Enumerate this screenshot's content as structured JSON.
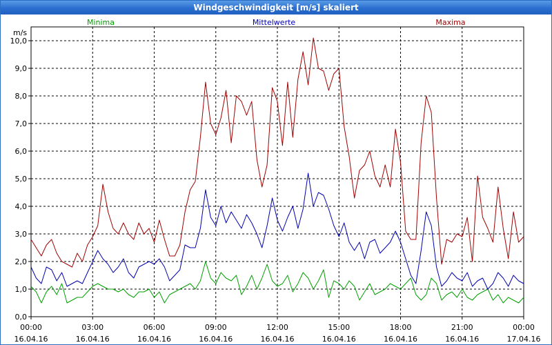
{
  "window": {
    "title": "Windgeschwindigkeit [m/s] skaliert"
  },
  "chart_data": {
    "type": "line",
    "title": "Windgeschwindigkeit [m/s] skaliert",
    "ylabel": "m/s",
    "ylim": [
      0,
      10.5
    ],
    "xlim": [
      0,
      24
    ],
    "y_ticks": [
      "0,0",
      "1,0",
      "2,0",
      "3,0",
      "4,0",
      "5,0",
      "6,0",
      "7,0",
      "8,0",
      "9,0",
      "10,0"
    ],
    "x_ticks": [
      {
        "time": "00:00",
        "date": "16.04.16"
      },
      {
        "time": "03:00",
        "date": "16.04.16"
      },
      {
        "time": "06:00",
        "date": "16.04.16"
      },
      {
        "time": "09:00",
        "date": "16.04.16"
      },
      {
        "time": "12:00",
        "date": "16.04.16"
      },
      {
        "time": "15:00",
        "date": "16.04.16"
      },
      {
        "time": "18:00",
        "date": "16.04.16"
      },
      {
        "time": "21:00",
        "date": "16.04.16"
      },
      {
        "time": "00:00",
        "date": "17.04.16"
      }
    ],
    "grid": true,
    "legend_position": "top",
    "series": [
      {
        "name": "Minima",
        "color": "#00a000",
        "x": [
          0.0,
          0.25,
          0.5,
          0.75,
          1.0,
          1.25,
          1.5,
          1.75,
          2.0,
          2.25,
          2.5,
          2.75,
          3.0,
          3.25,
          3.5,
          3.75,
          4.0,
          4.25,
          4.5,
          4.75,
          5.0,
          5.25,
          5.5,
          5.75,
          6.0,
          6.25,
          6.5,
          6.75,
          7.0,
          7.25,
          7.5,
          7.75,
          8.0,
          8.25,
          8.5,
          8.75,
          9.0,
          9.25,
          9.5,
          9.75,
          10.0,
          10.25,
          10.5,
          10.75,
          11.0,
          11.25,
          11.5,
          11.75,
          12.0,
          12.25,
          12.5,
          12.75,
          13.0,
          13.25,
          13.5,
          13.75,
          14.0,
          14.25,
          14.5,
          14.75,
          15.0,
          15.25,
          15.5,
          15.75,
          16.0,
          16.25,
          16.5,
          16.75,
          17.0,
          17.25,
          17.5,
          17.75,
          18.0,
          18.25,
          18.5,
          18.75,
          19.0,
          19.25,
          19.5,
          19.75,
          20.0,
          20.25,
          20.5,
          20.75,
          21.0,
          21.25,
          21.5,
          21.75,
          22.0,
          22.25,
          22.5,
          22.75,
          23.0,
          23.25,
          23.5,
          23.75,
          24.0
        ],
        "values": [
          1.1,
          0.9,
          0.5,
          0.9,
          1.1,
          0.8,
          1.2,
          0.5,
          0.6,
          0.7,
          0.7,
          0.9,
          1.1,
          1.2,
          1.1,
          1.0,
          1.0,
          0.9,
          1.0,
          0.8,
          0.7,
          0.9,
          0.9,
          1.0,
          0.7,
          0.9,
          0.5,
          0.8,
          0.9,
          1.0,
          1.1,
          1.2,
          1.0,
          1.3,
          2.0,
          1.4,
          1.2,
          1.6,
          1.4,
          1.3,
          1.5,
          0.8,
          1.1,
          1.5,
          1.0,
          1.4,
          1.9,
          1.3,
          1.1,
          1.2,
          1.5,
          0.9,
          1.2,
          1.6,
          1.4,
          1.0,
          1.3,
          1.7,
          0.7,
          1.3,
          1.2,
          1.0,
          1.3,
          1.1,
          0.6,
          0.9,
          1.2,
          0.8,
          0.9,
          1.0,
          1.2,
          1.1,
          1.0,
          1.2,
          1.4,
          0.8,
          0.6,
          0.8,
          1.4,
          1.2,
          0.6,
          0.8,
          0.9,
          0.7,
          1.0,
          0.7,
          0.6,
          0.8,
          0.9,
          1.0,
          0.6,
          0.8,
          0.5,
          0.7,
          0.6,
          0.5,
          0.7
        ]
      },
      {
        "name": "Mittelwerte",
        "color": "#0000b0",
        "x": [
          0.0,
          0.25,
          0.5,
          0.75,
          1.0,
          1.25,
          1.5,
          1.75,
          2.0,
          2.25,
          2.5,
          2.75,
          3.0,
          3.25,
          3.5,
          3.75,
          4.0,
          4.25,
          4.5,
          4.75,
          5.0,
          5.25,
          5.5,
          5.75,
          6.0,
          6.25,
          6.5,
          6.75,
          7.0,
          7.25,
          7.5,
          7.75,
          8.0,
          8.25,
          8.5,
          8.75,
          9.0,
          9.25,
          9.5,
          9.75,
          10.0,
          10.25,
          10.5,
          10.75,
          11.0,
          11.25,
          11.5,
          11.75,
          12.0,
          12.25,
          12.5,
          12.75,
          13.0,
          13.25,
          13.5,
          13.75,
          14.0,
          14.25,
          14.5,
          14.75,
          15.0,
          15.25,
          15.5,
          15.75,
          16.0,
          16.25,
          16.5,
          16.75,
          17.0,
          17.25,
          17.5,
          17.75,
          18.0,
          18.25,
          18.5,
          18.75,
          19.0,
          19.25,
          19.5,
          19.75,
          20.0,
          20.25,
          20.5,
          20.75,
          21.0,
          21.25,
          21.5,
          21.75,
          22.0,
          22.25,
          22.5,
          22.75,
          23.0,
          23.25,
          23.5,
          23.75,
          24.0
        ],
        "values": [
          1.8,
          1.4,
          1.2,
          1.8,
          1.7,
          1.3,
          1.6,
          1.1,
          1.2,
          1.3,
          1.2,
          1.6,
          2.0,
          2.4,
          2.1,
          1.9,
          1.6,
          1.8,
          2.1,
          1.6,
          1.4,
          1.8,
          1.9,
          2.0,
          1.9,
          2.1,
          1.8,
          1.3,
          1.5,
          1.7,
          2.6,
          2.5,
          2.5,
          3.2,
          4.6,
          3.6,
          3.3,
          4.0,
          3.4,
          3.8,
          3.5,
          3.2,
          3.7,
          3.4,
          3.0,
          2.5,
          3.3,
          4.3,
          3.5,
          3.1,
          3.6,
          4.0,
          3.2,
          3.9,
          5.2,
          4.0,
          4.5,
          4.4,
          3.9,
          3.3,
          2.9,
          3.4,
          2.7,
          2.4,
          2.7,
          2.1,
          2.7,
          2.8,
          2.3,
          2.5,
          2.7,
          3.1,
          2.7,
          2.1,
          1.5,
          1.2,
          2.4,
          3.8,
          3.3,
          1.8,
          1.1,
          1.3,
          1.6,
          1.4,
          1.3,
          1.6,
          1.1,
          1.3,
          1.4,
          1.0,
          1.2,
          1.6,
          1.4,
          1.1,
          1.5,
          1.3,
          1.2
        ]
      },
      {
        "name": "Maxima",
        "color": "#a00000",
        "x": [
          0.0,
          0.25,
          0.5,
          0.75,
          1.0,
          1.25,
          1.5,
          1.75,
          2.0,
          2.25,
          2.5,
          2.75,
          3.0,
          3.25,
          3.5,
          3.75,
          4.0,
          4.25,
          4.5,
          4.75,
          5.0,
          5.25,
          5.5,
          5.75,
          6.0,
          6.25,
          6.5,
          6.75,
          7.0,
          7.25,
          7.5,
          7.75,
          8.0,
          8.25,
          8.5,
          8.75,
          9.0,
          9.25,
          9.5,
          9.75,
          10.0,
          10.25,
          10.5,
          10.75,
          11.0,
          11.25,
          11.5,
          11.75,
          12.0,
          12.25,
          12.5,
          12.75,
          13.0,
          13.25,
          13.5,
          13.75,
          14.0,
          14.25,
          14.5,
          14.75,
          15.0,
          15.25,
          15.5,
          15.75,
          16.0,
          16.25,
          16.5,
          16.75,
          17.0,
          17.25,
          17.5,
          17.75,
          18.0,
          18.25,
          18.5,
          18.75,
          19.0,
          19.25,
          19.5,
          19.75,
          20.0,
          20.25,
          20.5,
          20.75,
          21.0,
          21.25,
          21.5,
          21.75,
          22.0,
          22.25,
          22.5,
          22.75,
          23.0,
          23.25,
          23.5,
          23.75,
          24.0
        ],
        "values": [
          2.8,
          2.5,
          2.2,
          2.6,
          2.8,
          2.3,
          2.0,
          1.9,
          1.8,
          2.3,
          2.0,
          2.6,
          2.9,
          3.3,
          4.8,
          3.8,
          3.2,
          3.0,
          3.4,
          3.0,
          2.8,
          3.4,
          3.0,
          3.2,
          2.7,
          3.5,
          2.8,
          2.2,
          2.2,
          2.6,
          3.8,
          4.6,
          4.9,
          6.5,
          8.5,
          7.0,
          6.6,
          7.2,
          8.2,
          6.3,
          8.0,
          7.8,
          7.3,
          7.8,
          5.7,
          4.7,
          5.5,
          8.3,
          7.8,
          6.2,
          8.5,
          6.5,
          8.6,
          9.6,
          8.4,
          10.1,
          9.0,
          8.9,
          8.2,
          8.8,
          9.0,
          6.9,
          5.8,
          4.3,
          5.3,
          5.5,
          6.0,
          5.1,
          4.7,
          5.5,
          4.7,
          6.8,
          5.6,
          3.1,
          2.8,
          2.8,
          6.3,
          8.0,
          7.4,
          4.3,
          1.9,
          2.8,
          2.7,
          3.0,
          2.9,
          3.6,
          2.0,
          5.1,
          3.6,
          3.2,
          2.7,
          4.7,
          3.2,
          2.1,
          3.8,
          2.7,
          2.9
        ]
      }
    ]
  }
}
